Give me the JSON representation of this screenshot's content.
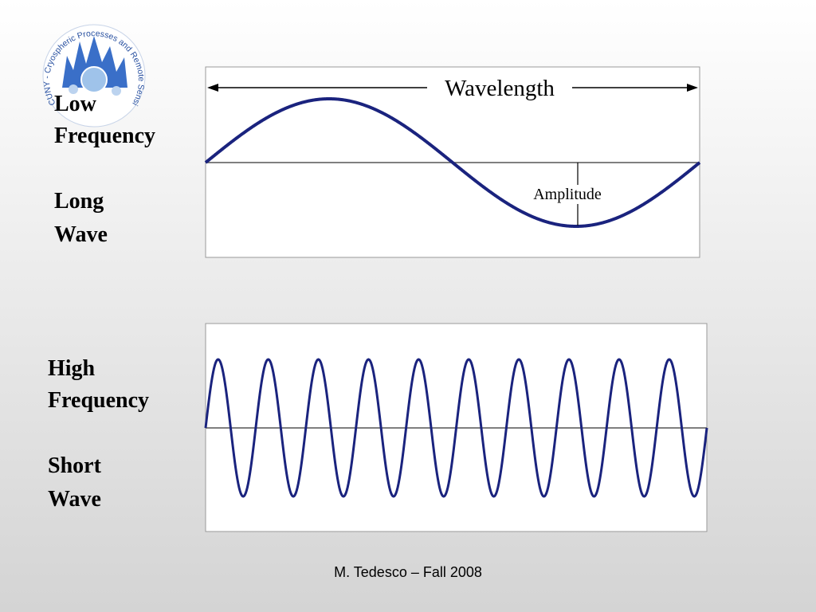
{
  "logo": {
    "text": "CUNY - Cryospheric Processes and Remote Sensing Group - CCNY"
  },
  "low": {
    "label_1": "Low",
    "label_2": "Frequency",
    "label_3": "Long",
    "label_4": "Wave",
    "wavelength": "Wavelength",
    "amplitude": "Amplitude"
  },
  "high": {
    "label_1": "High",
    "label_2": "Frequency",
    "label_3": "Short",
    "label_4": "Wave"
  },
  "footer": "M. Tedesco – Fall 2008"
}
